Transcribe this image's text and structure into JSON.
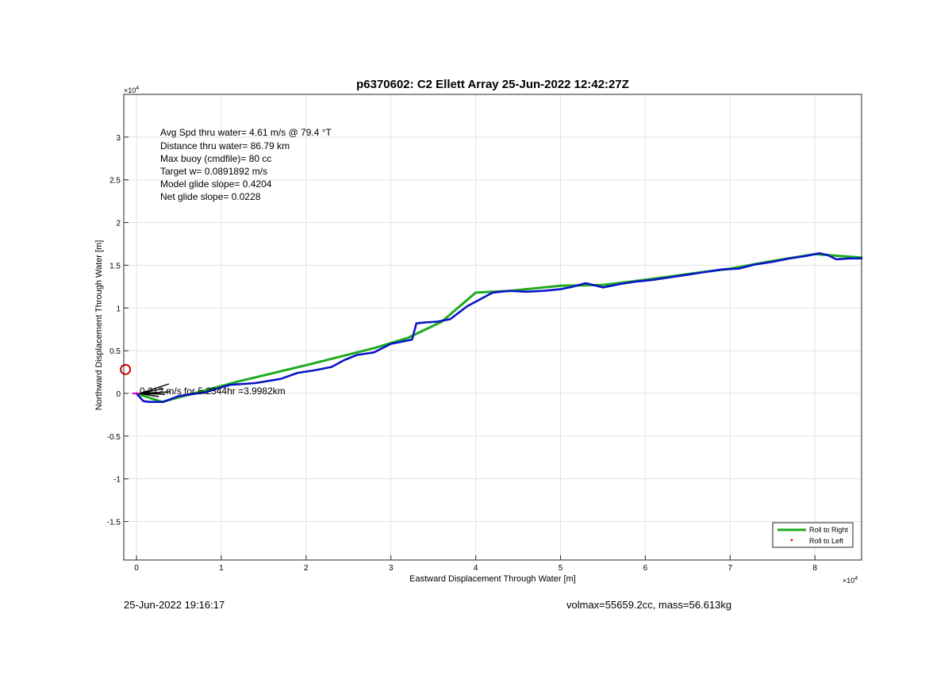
{
  "chart_data": {
    "type": "line",
    "title": "p6370602: C2 Ellett Array 25-Jun-2022 12:42:27Z",
    "xlabel": "Eastward Displacement Through Water [m]",
    "ylabel": "Northward Displacement Through Water [m]",
    "x_exponent_label": "×10",
    "x_exponent": "4",
    "y_exponent_label": "×10",
    "y_exponent": "4",
    "xlim": [
      -1500,
      85500
    ],
    "ylim": [
      -19500,
      35000
    ],
    "grid": true,
    "x_ticks": [
      0,
      10000,
      20000,
      30000,
      40000,
      50000,
      60000,
      70000,
      80000
    ],
    "x_tick_labels": [
      "0",
      "1",
      "2",
      "3",
      "4",
      "5",
      "6",
      "7",
      "8"
    ],
    "y_ticks": [
      -15000,
      -10000,
      -5000,
      0,
      5000,
      10000,
      15000,
      20000,
      25000,
      30000
    ],
    "y_tick_labels": [
      "-1.5",
      "-1",
      "-0.5",
      "0",
      "0.5",
      "1",
      "1.5",
      "2",
      "2.5",
      "3"
    ],
    "stats_lines": [
      "Avg Spd thru water=  4.61 m/s @  79.4 °T",
      "Distance thru water= 86.79 km",
      "Max buoy (cmdfile)= 80 cc",
      "Target w= 0.0891892 m/s",
      "Model glide slope= 0.4204",
      "Net glide slope= 0.0228"
    ],
    "current_annotation": "0.212 m/s for 5.2344hr =3.9982km",
    "legend_position": "bottom-right",
    "legend": [
      {
        "label": "Roll to Right",
        "color": "#1faa1f",
        "style": "line"
      },
      {
        "label": "Roll to Left",
        "color": "#ff0000",
        "style": "dot"
      }
    ],
    "series": [
      {
        "name": "Roll to Right",
        "color": "#1faa1f",
        "x": [
          0,
          3000,
          12000,
          20000,
          28000,
          32000,
          36000,
          40000,
          44000,
          50000,
          55000,
          60000,
          66000,
          70000,
          75000,
          80000,
          85500
        ],
        "y": [
          0,
          -1000,
          1400,
          3300,
          5300,
          6500,
          8400,
          11800,
          12000,
          12600,
          12700,
          13300,
          14100,
          14600,
          15500,
          16300,
          15900
        ]
      },
      {
        "name": "",
        "color": "#0a14c8",
        "x": [
          0,
          800,
          1500,
          3200,
          5000,
          8000,
          11000,
          14000,
          17000,
          19000,
          21000,
          23000,
          24500,
          26000,
          28000,
          30000,
          31500,
          32500,
          33000,
          34000,
          35500,
          37000,
          39000,
          40500,
          42000,
          44000,
          46000,
          48000,
          50000,
          51500,
          53000,
          55000,
          57000,
          59000,
          61000,
          63000,
          65000,
          67000,
          69000,
          71000,
          73000,
          75000,
          77000,
          79000,
          80500,
          81500,
          82500,
          84000,
          85500
        ],
        "y": [
          0,
          -900,
          -1000,
          -1000,
          -300,
          100,
          1000,
          1200,
          1700,
          2400,
          2700,
          3100,
          3900,
          4500,
          4800,
          5800,
          6100,
          6300,
          8200,
          8300,
          8400,
          8700,
          10200,
          11000,
          11800,
          12000,
          11900,
          12000,
          12200,
          12500,
          12900,
          12400,
          12800,
          13100,
          13300,
          13600,
          13900,
          14200,
          14500,
          14600,
          15100,
          15400,
          15800,
          16100,
          16400,
          16200,
          15700,
          15800,
          15800
        ]
      }
    ],
    "start_marker": {
      "x": -1300,
      "y": 2800,
      "color": "#cc0000"
    }
  },
  "footer": {
    "timestamp": "25-Jun-2022 19:16:17",
    "mass_info": "volmax=55659.2cc, mass=56.613kg"
  }
}
